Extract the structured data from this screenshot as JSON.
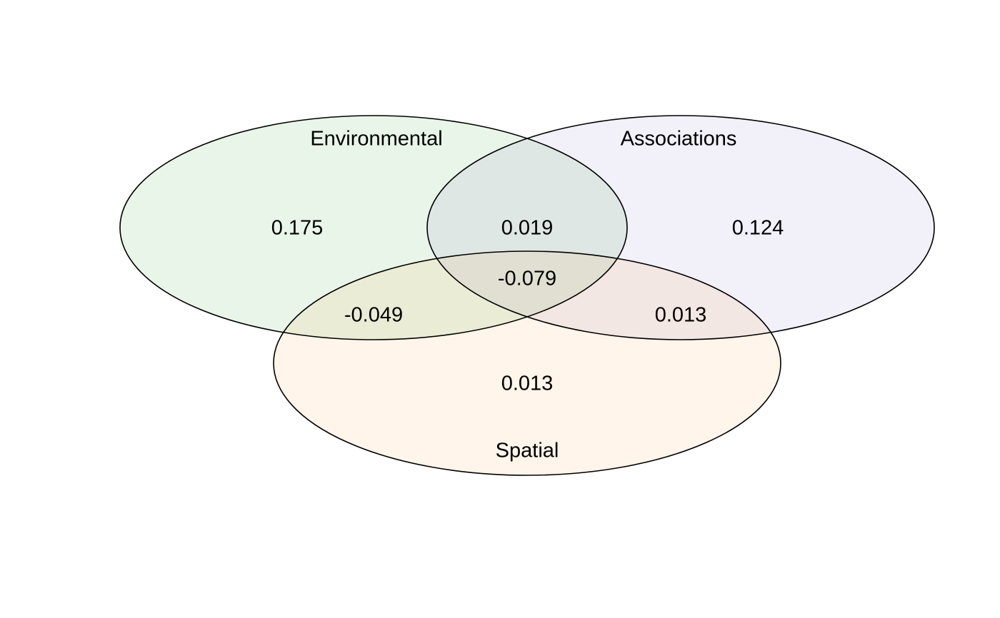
{
  "sets": {
    "environmental": {
      "label": "Environmental",
      "fill": "#2ca02c"
    },
    "associations": {
      "label": "Associations",
      "fill": "#7b68b8"
    },
    "spatial": {
      "label": "Spatial",
      "fill": "#ff9f2e"
    }
  },
  "regions": {
    "environmental_only": "0.175",
    "environmental_associations": "0.019",
    "associations_only": "0.124",
    "all_three": "-0.079",
    "environmental_spatial": "-0.049",
    "associations_spatial": "0.013",
    "spatial_only": "0.013"
  },
  "fill_opacity": 0.1
}
